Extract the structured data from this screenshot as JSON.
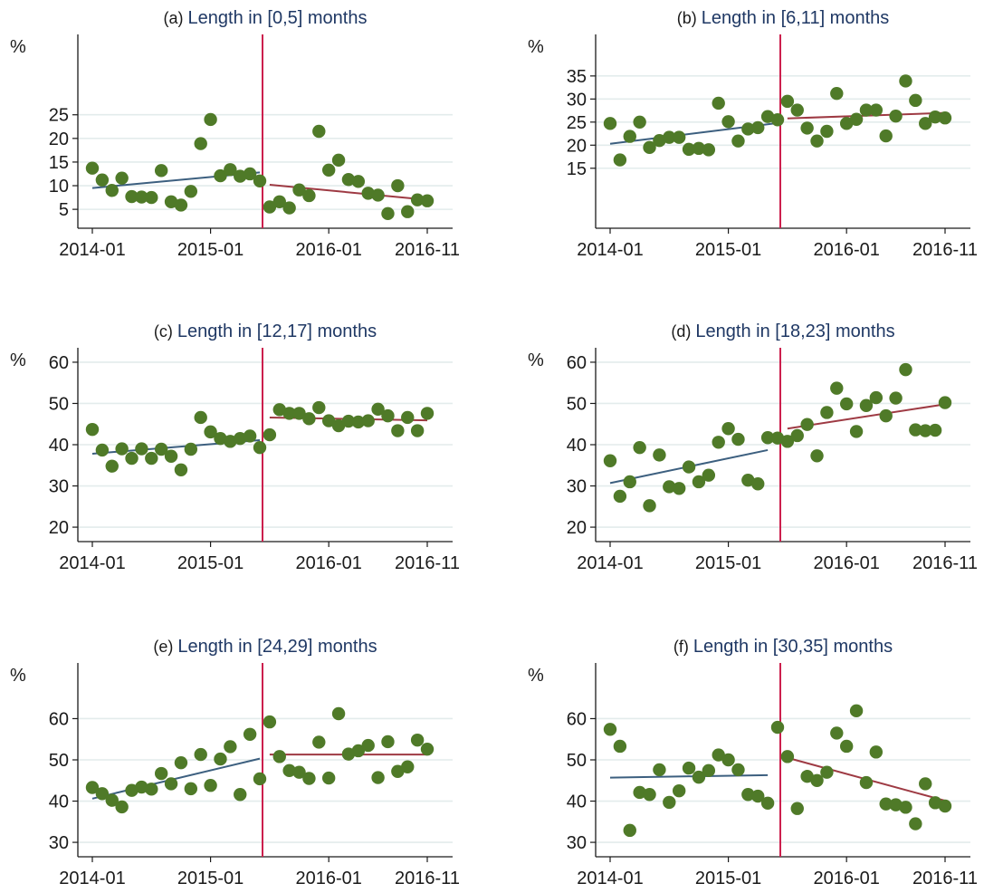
{
  "figure": {
    "x_tick_labels": [
      "2014-01",
      "2015-01",
      "2016-01",
      "2016-11"
    ],
    "unit_label": "%",
    "colors": {
      "points": "#4f7a28",
      "pre_fit": "#3c5f7f",
      "post_fit": "#9e3a43",
      "cutoff_line": "#cc1f4d",
      "grid": "#e3ecec",
      "title_text": "#1f3864"
    }
  },
  "chart_data": [
    {
      "type": "scatter",
      "tag": "(a)",
      "title": "Length in [0,5] months",
      "ylabel": "%",
      "x_start": "2014-01",
      "x_ticks": [
        "2014-01",
        "2015-01",
        "2016-01",
        "2016-11"
      ],
      "x_range": [
        "2014-01",
        "2016-11"
      ],
      "y_range": [
        1,
        42
      ],
      "y_ticks": [
        5,
        10,
        15,
        20,
        25
      ],
      "grid": true,
      "cutoff": "2015-06",
      "series": [
        {
          "x": [
            "2014-01",
            "2014-02",
            "2014-03",
            "2014-04",
            "2014-05",
            "2014-06",
            "2014-07",
            "2014-08",
            "2014-09",
            "2014-10",
            "2014-11",
            "2014-12",
            "2015-01",
            "2015-02",
            "2015-03",
            "2015-04",
            "2015-05",
            "2015-06",
            "2015-07",
            "2015-08",
            "2015-09",
            "2015-10",
            "2015-11",
            "2015-12",
            "2016-01",
            "2016-02",
            "2016-03",
            "2016-04",
            "2016-05",
            "2016-06",
            "2016-07",
            "2016-08",
            "2016-09",
            "2016-10",
            "2016-11"
          ],
          "y": [
            13.7,
            11.2,
            9.0,
            11.6,
            7.7,
            7.6,
            7.5,
            13.2,
            6.6,
            5.9,
            8.8,
            18.9,
            24.0,
            12.1,
            13.4,
            12.0,
            12.5,
            11.0,
            5.5,
            6.6,
            5.3,
            9.1,
            7.9,
            21.5,
            13.3,
            15.4,
            11.3,
            10.9,
            8.4,
            8.0,
            4.1,
            10.0,
            4.5,
            7.0,
            6.8
          ]
        }
      ],
      "fit_pre": {
        "from": "2014-01",
        "to": "2015-06",
        "y0": 9.5,
        "y1": 12.8
      },
      "fit_post": {
        "from": "2015-07",
        "to": "2016-11",
        "y0": 10.2,
        "y1": 7.0
      }
    },
    {
      "type": "scatter",
      "tag": "(b)",
      "title": "Length in [6,11] months",
      "ylabel": "%",
      "x_start": "2014-01",
      "x_ticks": [
        "2014-01",
        "2015-01",
        "2016-01",
        "2016-11"
      ],
      "x_range": [
        "2014-01",
        "2016-11"
      ],
      "y_range": [
        2,
        44
      ],
      "y_ticks": [
        15,
        20,
        25,
        30,
        35
      ],
      "grid": true,
      "cutoff": "2015-06",
      "series": [
        {
          "x": [
            "2014-01",
            "2014-02",
            "2014-03",
            "2014-04",
            "2014-05",
            "2014-06",
            "2014-07",
            "2014-08",
            "2014-09",
            "2014-10",
            "2014-11",
            "2014-12",
            "2015-01",
            "2015-02",
            "2015-03",
            "2015-04",
            "2015-05",
            "2015-06",
            "2015-07",
            "2015-08",
            "2015-09",
            "2015-10",
            "2015-11",
            "2015-12",
            "2016-01",
            "2016-02",
            "2016-03",
            "2016-04",
            "2016-05",
            "2016-06",
            "2016-07",
            "2016-08",
            "2016-09",
            "2016-10",
            "2016-11"
          ],
          "y": [
            24.7,
            16.8,
            21.9,
            25.0,
            19.5,
            21.0,
            21.7,
            21.7,
            19.1,
            19.3,
            19.0,
            29.1,
            25.1,
            20.9,
            23.5,
            23.8,
            26.2,
            25.5,
            29.5,
            27.6,
            23.7,
            20.9,
            23.0,
            31.2,
            24.7,
            25.6,
            27.6,
            27.6,
            22.0,
            26.3,
            33.9,
            29.7,
            24.7,
            26.1,
            25.9
          ]
        }
      ],
      "fit_pre": {
        "from": "2014-01",
        "to": "2015-06",
        "y0": 20.3,
        "y1": 24.8
      },
      "fit_post": {
        "from": "2015-07",
        "to": "2016-11",
        "y0": 25.8,
        "y1": 27.0
      }
    },
    {
      "type": "scatter",
      "tag": "(c)",
      "title": "Length in [12,17] months",
      "ylabel": "%",
      "x_start": "2014-01",
      "x_ticks": [
        "2014-01",
        "2015-01",
        "2016-01",
        "2016-11"
      ],
      "x_range": [
        "2014-01",
        "2016-11"
      ],
      "y_range": [
        16.5,
        63.5
      ],
      "y_ticks": [
        20,
        30,
        40,
        50,
        60
      ],
      "grid": true,
      "cutoff": "2015-06",
      "series": [
        {
          "x": [
            "2014-01",
            "2014-02",
            "2014-03",
            "2014-04",
            "2014-05",
            "2014-06",
            "2014-07",
            "2014-08",
            "2014-09",
            "2014-10",
            "2014-11",
            "2014-12",
            "2015-01",
            "2015-02",
            "2015-03",
            "2015-04",
            "2015-05",
            "2015-06",
            "2015-07",
            "2015-08",
            "2015-09",
            "2015-10",
            "2015-11",
            "2015-12",
            "2016-01",
            "2016-02",
            "2016-03",
            "2016-04",
            "2016-05",
            "2016-06",
            "2016-07",
            "2016-08",
            "2016-09",
            "2016-10",
            "2016-11"
          ],
          "y": [
            43.7,
            38.7,
            34.8,
            39.0,
            36.7,
            39.0,
            36.7,
            38.9,
            37.2,
            33.9,
            38.9,
            46.6,
            43.1,
            41.5,
            40.8,
            41.5,
            42.1,
            39.3,
            42.4,
            48.5,
            47.6,
            47.6,
            46.3,
            49.0,
            45.8,
            44.6,
            45.7,
            45.5,
            45.8,
            48.6,
            47.0,
            43.4,
            46.6,
            43.4,
            47.6
          ]
        }
      ],
      "fit_pre": {
        "from": "2014-01",
        "to": "2015-06",
        "y0": 37.8,
        "y1": 41.1
      },
      "fit_post": {
        "from": "2015-07",
        "to": "2016-11",
        "y0": 46.6,
        "y1": 45.9
      }
    },
    {
      "type": "scatter",
      "tag": "(d)",
      "title": "Length in [18,23] months",
      "ylabel": "%",
      "x_start": "2014-01",
      "x_ticks": [
        "2014-01",
        "2015-01",
        "2016-01",
        "2016-11"
      ],
      "x_range": [
        "2014-01",
        "2016-11"
      ],
      "y_range": [
        16.5,
        63.5
      ],
      "y_ticks": [
        20,
        30,
        40,
        50,
        60
      ],
      "grid": true,
      "cutoff": "2015-06",
      "series": [
        {
          "x": [
            "2014-01",
            "2014-02",
            "2014-03",
            "2014-04",
            "2014-05",
            "2014-06",
            "2014-07",
            "2014-08",
            "2014-09",
            "2014-10",
            "2014-11",
            "2014-12",
            "2015-01",
            "2015-02",
            "2015-03",
            "2015-04",
            "2015-05",
            "2015-06",
            "2015-07",
            "2015-08",
            "2015-09",
            "2015-10",
            "2015-11",
            "2015-12",
            "2016-01",
            "2016-02",
            "2016-03",
            "2016-04",
            "2016-05",
            "2016-06",
            "2016-07",
            "2016-08",
            "2016-09",
            "2016-10",
            "2016-11"
          ],
          "y": [
            36.1,
            27.5,
            31.0,
            39.3,
            25.2,
            37.5,
            29.8,
            29.4,
            34.6,
            31.0,
            32.6,
            40.6,
            43.9,
            41.3,
            31.4,
            30.5,
            41.7,
            41.6,
            40.8,
            42.2,
            44.9,
            37.3,
            47.8,
            53.7,
            49.9,
            43.2,
            49.5,
            51.4,
            47.0,
            51.3,
            58.2,
            43.6,
            43.4,
            43.5,
            50.2
          ]
        }
      ],
      "fit_pre": {
        "from": "2014-01",
        "to": "2015-05",
        "y0": 30.7,
        "y1": 38.7
      },
      "fit_post": {
        "from": "2015-07",
        "to": "2016-11",
        "y0": 43.9,
        "y1": 49.8
      }
    },
    {
      "type": "scatter",
      "tag": "(e)",
      "title": "Length in [24,29] months",
      "ylabel": "%",
      "x_start": "2014-01",
      "x_ticks": [
        "2014-01",
        "2015-01",
        "2016-01",
        "2016-11"
      ],
      "x_range": [
        "2014-01",
        "2016-11"
      ],
      "y_range": [
        26.5,
        73.5
      ],
      "y_ticks": [
        30,
        40,
        50,
        60
      ],
      "grid": true,
      "cutoff": "2015-06",
      "series": [
        {
          "x": [
            "2014-01",
            "2014-02",
            "2014-03",
            "2014-04",
            "2014-05",
            "2014-06",
            "2014-07",
            "2014-08",
            "2014-09",
            "2014-10",
            "2014-11",
            "2014-12",
            "2015-01",
            "2015-02",
            "2015-03",
            "2015-04",
            "2015-05",
            "2015-06",
            "2015-07",
            "2015-08",
            "2015-09",
            "2015-10",
            "2015-11",
            "2015-12",
            "2016-01",
            "2016-02",
            "2016-03",
            "2016-04",
            "2016-05",
            "2016-06",
            "2016-07",
            "2016-08",
            "2016-09",
            "2016-10",
            "2016-11"
          ],
          "y": [
            43.3,
            41.8,
            40.2,
            38.6,
            42.6,
            43.4,
            42.9,
            46.7,
            44.2,
            49.3,
            43.0,
            51.3,
            43.8,
            50.2,
            53.2,
            41.6,
            56.2,
            45.4,
            59.2,
            50.8,
            47.4,
            47.0,
            45.5,
            54.3,
            45.6,
            61.2,
            51.4,
            52.2,
            53.5,
            45.7,
            54.4,
            47.2,
            48.3,
            54.8,
            52.6
          ]
        }
      ],
      "fit_pre": {
        "from": "2014-01",
        "to": "2015-06",
        "y0": 40.6,
        "y1": 50.3
      },
      "fit_post": {
        "from": "2015-07",
        "to": "2016-11",
        "y0": 51.3,
        "y1": 51.3
      }
    },
    {
      "type": "scatter",
      "tag": "(f)",
      "title": "Length in [30,35] months",
      "ylabel": "%",
      "x_start": "2014-01",
      "x_ticks": [
        "2014-01",
        "2015-01",
        "2016-01",
        "2016-11"
      ],
      "x_range": [
        "2014-01",
        "2016-11"
      ],
      "y_range": [
        26.5,
        73.5
      ],
      "y_ticks": [
        30,
        40,
        50,
        60
      ],
      "grid": true,
      "cutoff": "2015-06",
      "series": [
        {
          "x": [
            "2014-01",
            "2014-02",
            "2014-03",
            "2014-04",
            "2014-05",
            "2014-06",
            "2014-07",
            "2014-08",
            "2014-09",
            "2014-10",
            "2014-11",
            "2014-12",
            "2015-01",
            "2015-02",
            "2015-03",
            "2015-04",
            "2015-05",
            "2015-06",
            "2015-07",
            "2015-08",
            "2015-09",
            "2015-10",
            "2015-11",
            "2015-12",
            "2016-01",
            "2016-02",
            "2016-03",
            "2016-04",
            "2016-05",
            "2016-06",
            "2016-07",
            "2016-08",
            "2016-09",
            "2016-10",
            "2016-11"
          ],
          "y": [
            57.4,
            53.3,
            32.9,
            42.1,
            41.6,
            47.6,
            39.7,
            42.5,
            48.0,
            45.8,
            47.4,
            51.2,
            50.0,
            47.6,
            41.6,
            41.2,
            39.5,
            57.9,
            50.8,
            38.2,
            46.0,
            45.0,
            47.0,
            56.5,
            53.3,
            61.9,
            44.5,
            51.9,
            39.3,
            39.1,
            38.5,
            34.5,
            44.2,
            39.6,
            38.8
          ]
        }
      ],
      "fit_pre": {
        "from": "2014-01",
        "to": "2015-05",
        "y0": 45.7,
        "y1": 46.3
      },
      "fit_post": {
        "from": "2015-07",
        "to": "2016-11",
        "y0": 50.5,
        "y1": 40.1
      }
    }
  ]
}
